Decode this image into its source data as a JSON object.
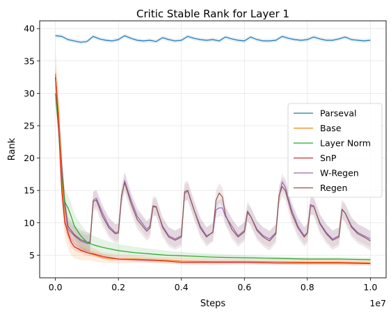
{
  "chart_data": {
    "type": "line",
    "title": "Critic Stable Rank for Layer 1",
    "xlabel": "Steps",
    "ylabel": "Rank",
    "x_offset_label": "1e7",
    "xlim": [
      -0.05,
      1.05
    ],
    "ylim": [
      1.5,
      41.2
    ],
    "x_ticks": [
      0.0,
      0.2,
      0.4,
      0.6,
      0.8,
      1.0
    ],
    "x_tick_labels": [
      "0.0",
      "0.2",
      "0.4",
      "0.6",
      "0.8",
      "1.0"
    ],
    "y_ticks": [
      5,
      10,
      15,
      20,
      25,
      30,
      35,
      40
    ],
    "y_tick_labels": [
      "5",
      "10",
      "15",
      "20",
      "25",
      "30",
      "35",
      "40"
    ],
    "grid": true,
    "legend_position": "center-right",
    "series": [
      {
        "name": "Parseval",
        "color": "#1f77b4",
        "x": [
          0.0,
          0.02,
          0.04,
          0.06,
          0.08,
          0.1,
          0.12,
          0.14,
          0.16,
          0.18,
          0.2,
          0.22,
          0.24,
          0.26,
          0.28,
          0.3,
          0.32,
          0.34,
          0.36,
          0.38,
          0.4,
          0.42,
          0.44,
          0.46,
          0.48,
          0.5,
          0.52,
          0.54,
          0.56,
          0.58,
          0.6,
          0.62,
          0.64,
          0.66,
          0.68,
          0.7,
          0.72,
          0.74,
          0.76,
          0.78,
          0.8,
          0.82,
          0.84,
          0.86,
          0.88,
          0.9,
          0.92,
          0.94,
          0.96,
          0.98,
          1.0
        ],
        "values": [
          38.9,
          38.8,
          38.3,
          38.1,
          37.9,
          38.0,
          38.8,
          38.4,
          38.2,
          38.1,
          38.3,
          38.9,
          38.5,
          38.2,
          38.1,
          38.2,
          38.0,
          38.6,
          38.3,
          38.1,
          38.2,
          38.8,
          38.5,
          38.3,
          38.2,
          38.3,
          38.1,
          38.7,
          38.4,
          38.2,
          38.1,
          38.7,
          38.3,
          38.1,
          38.1,
          38.2,
          38.8,
          38.5,
          38.3,
          38.2,
          38.3,
          38.7,
          38.4,
          38.2,
          38.2,
          38.4,
          38.7,
          38.3,
          38.2,
          38.1,
          38.2
        ],
        "band": 0.3
      },
      {
        "name": "Base",
        "color": "#ff7f0e",
        "x": [
          0.0,
          0.01,
          0.02,
          0.03,
          0.04,
          0.05,
          0.06,
          0.08,
          0.1,
          0.12,
          0.15,
          0.2,
          0.25,
          0.3,
          0.35,
          0.4,
          0.5,
          0.6,
          0.7,
          0.8,
          0.9,
          1.0
        ],
        "values": [
          33.0,
          27.0,
          16.5,
          10.5,
          8.2,
          7.0,
          6.3,
          5.7,
          5.4,
          5.1,
          4.6,
          4.4,
          4.4,
          4.3,
          4.2,
          4.1,
          4.0,
          4.0,
          4.0,
          3.9,
          3.9,
          3.8
        ],
        "band": [
          4.0,
          4.0,
          4.0,
          3.0,
          2.2,
          2.0,
          1.8,
          1.5,
          1.2,
          1.0,
          0.8,
          0.7,
          0.6,
          0.5,
          0.5,
          0.5,
          0.5,
          0.4,
          0.4,
          0.4,
          0.4,
          0.4
        ]
      },
      {
        "name": "Layer Norm",
        "color": "#2ca02c",
        "x": [
          0.0,
          0.01,
          0.02,
          0.03,
          0.04,
          0.05,
          0.06,
          0.08,
          0.1,
          0.12,
          0.15,
          0.2,
          0.25,
          0.3,
          0.35,
          0.4,
          0.5,
          0.6,
          0.7,
          0.8,
          0.9,
          1.0
        ],
        "values": [
          30.0,
          24.5,
          17.0,
          13.2,
          12.3,
          11.0,
          9.5,
          8.0,
          7.0,
          6.6,
          6.2,
          5.7,
          5.4,
          5.2,
          5.0,
          4.9,
          4.7,
          4.6,
          4.5,
          4.4,
          4.4,
          4.3
        ],
        "band": [
          2.0,
          2.0,
          2.0,
          2.0,
          2.0,
          2.0,
          2.0,
          1.8,
          1.6,
          1.4,
          1.2,
          1.0,
          0.9,
          0.8,
          0.7,
          0.6,
          0.5,
          0.4,
          0.3,
          0.3,
          0.3,
          0.3
        ]
      },
      {
        "name": "SnP",
        "color": "#d62728",
        "x": [
          0.0,
          0.01,
          0.02,
          0.03,
          0.04,
          0.05,
          0.06,
          0.08,
          0.1,
          0.12,
          0.15,
          0.2,
          0.25,
          0.3,
          0.35,
          0.4,
          0.5,
          0.6,
          0.7,
          0.8,
          0.9,
          1.0
        ],
        "values": [
          32.5,
          25.0,
          15.0,
          10.0,
          8.5,
          7.0,
          6.3,
          5.8,
          5.4,
          5.2,
          4.8,
          4.4,
          4.3,
          4.2,
          4.1,
          3.9,
          3.9,
          3.9,
          3.8,
          3.8,
          3.8,
          3.7
        ],
        "band": [
          1.5,
          1.5,
          1.5,
          1.2,
          1.0,
          0.8,
          0.6,
          0.5,
          0.5,
          0.4,
          0.4,
          0.3,
          0.3,
          0.3,
          0.3,
          0.3,
          0.3,
          0.3,
          0.3,
          0.3,
          0.3,
          0.3
        ]
      },
      {
        "name": "W-Regen",
        "color": "#9467bd",
        "x": [
          0.0,
          0.01,
          0.02,
          0.03,
          0.04,
          0.05,
          0.06,
          0.08,
          0.1,
          0.11,
          0.12,
          0.13,
          0.15,
          0.17,
          0.19,
          0.2,
          0.21,
          0.22,
          0.24,
          0.26,
          0.29,
          0.3,
          0.31,
          0.32,
          0.34,
          0.36,
          0.38,
          0.4,
          0.41,
          0.42,
          0.44,
          0.46,
          0.48,
          0.5,
          0.51,
          0.52,
          0.53,
          0.54,
          0.56,
          0.58,
          0.6,
          0.61,
          0.62,
          0.64,
          0.66,
          0.68,
          0.7,
          0.71,
          0.72,
          0.73,
          0.75,
          0.77,
          0.79,
          0.8,
          0.81,
          0.82,
          0.84,
          0.86,
          0.88,
          0.9,
          0.91,
          0.92,
          0.94,
          0.96,
          0.98,
          1.0
        ],
        "values": [
          33.0,
          26.0,
          18.0,
          12.5,
          9.0,
          8.5,
          8.0,
          7.2,
          6.8,
          6.8,
          13.5,
          13.8,
          11.5,
          9.5,
          8.5,
          8.6,
          14.0,
          16.5,
          13.5,
          11.0,
          9.0,
          9.5,
          12.5,
          12.4,
          9.5,
          8.0,
          7.5,
          8.0,
          14.5,
          14.9,
          12.0,
          9.5,
          8.0,
          8.5,
          12.0,
          12.3,
          12.3,
          11.0,
          9.5,
          8.0,
          8.8,
          11.5,
          11.0,
          9.0,
          8.0,
          7.5,
          8.5,
          14.0,
          16.3,
          15.5,
          12.0,
          9.5,
          8.0,
          8.5,
          12.5,
          12.5,
          10.0,
          8.5,
          7.5,
          8.0,
          12.0,
          11.5,
          9.5,
          8.5,
          8.0,
          7.5
        ],
        "band": 1.3
      },
      {
        "name": "Regen",
        "color": "#8c564b",
        "x": [
          0.0,
          0.01,
          0.02,
          0.03,
          0.04,
          0.05,
          0.06,
          0.08,
          0.1,
          0.11,
          0.12,
          0.13,
          0.15,
          0.17,
          0.19,
          0.2,
          0.21,
          0.22,
          0.24,
          0.26,
          0.29,
          0.3,
          0.31,
          0.32,
          0.34,
          0.36,
          0.38,
          0.4,
          0.41,
          0.42,
          0.44,
          0.46,
          0.48,
          0.5,
          0.51,
          0.52,
          0.53,
          0.54,
          0.56,
          0.58,
          0.6,
          0.61,
          0.62,
          0.64,
          0.66,
          0.68,
          0.7,
          0.71,
          0.72,
          0.73,
          0.75,
          0.77,
          0.79,
          0.8,
          0.81,
          0.82,
          0.84,
          0.86,
          0.88,
          0.9,
          0.91,
          0.92,
          0.94,
          0.96,
          0.98,
          1.0
        ],
        "values": [
          33.0,
          27.0,
          19.0,
          13.0,
          9.5,
          8.8,
          8.2,
          7.4,
          7.0,
          7.0,
          13.3,
          13.5,
          11.0,
          9.2,
          8.3,
          8.4,
          14.2,
          16.2,
          13.0,
          10.5,
          8.7,
          9.2,
          12.6,
          12.5,
          9.3,
          7.8,
          7.3,
          7.8,
          14.8,
          15.0,
          12.0,
          9.2,
          7.8,
          8.6,
          13.5,
          14.6,
          14.0,
          11.2,
          9.0,
          7.8,
          8.6,
          11.8,
          11.0,
          8.8,
          7.8,
          7.2,
          8.3,
          14.2,
          15.6,
          15.0,
          11.5,
          9.2,
          7.8,
          8.4,
          12.8,
          12.6,
          9.8,
          8.3,
          7.3,
          7.8,
          12.1,
          11.5,
          9.3,
          8.3,
          7.8,
          7.2
        ],
        "band": 1.5
      }
    ]
  }
}
